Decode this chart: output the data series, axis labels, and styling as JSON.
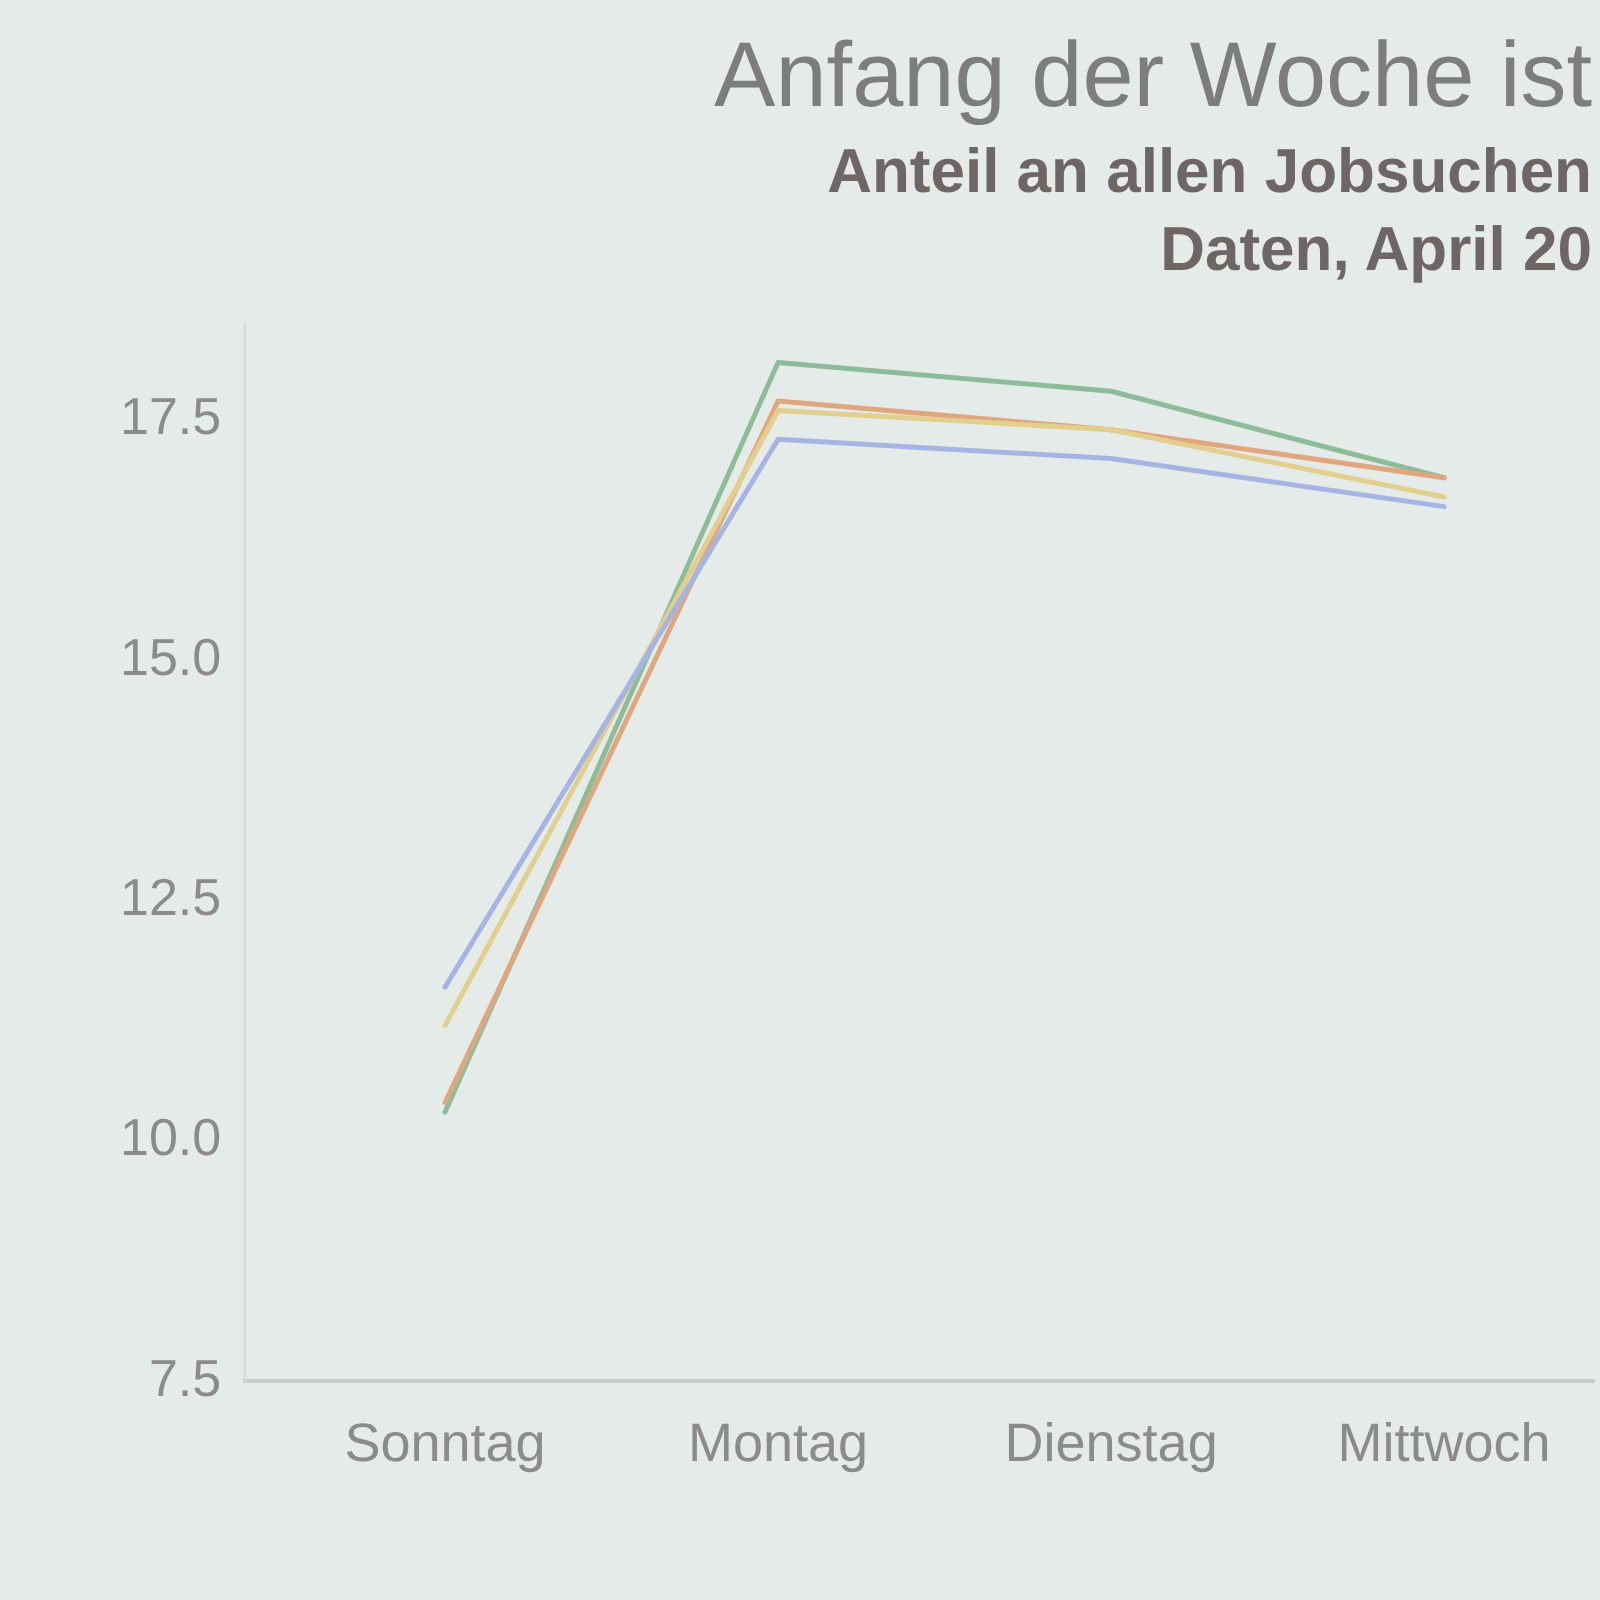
{
  "chart_data": {
    "type": "line",
    "title": "Anfang der Woche ist",
    "subtitle": "Anteil an allen Jobsuchen\nDaten, April 20",
    "categories": [
      "Sonntag",
      "Montag",
      "Dienstag",
      "Mittwoch"
    ],
    "series": [
      {
        "color": "#a6b4e4",
        "values": [
          11.6,
          17.3,
          17.1,
          16.6
        ]
      },
      {
        "color": "#e2cf8e",
        "values": [
          11.2,
          17.6,
          17.4,
          16.7
        ]
      },
      {
        "color": "#e0a67e",
        "values": [
          10.4,
          17.7,
          17.4,
          16.9
        ]
      },
      {
        "color": "#8dbd98",
        "values": [
          10.3,
          18.1,
          17.8,
          16.9
        ]
      }
    ],
    "ylim": [
      7.5,
      18.5
    ],
    "yticks": [
      7.5,
      {
        "value": 10,
        "label": "10.0"
      },
      12.5,
      {
        "value": 15,
        "label": "15.0"
      },
      17.5
    ],
    "marker": "none",
    "line_style": "solid"
  }
}
